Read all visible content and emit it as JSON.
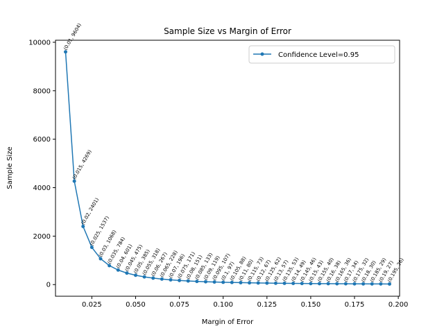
{
  "chart_data": {
    "type": "line",
    "title": "Sample Size vs Margin of Error",
    "xlabel": "Margin of Error",
    "ylabel": "Sample Size",
    "xlim": [
      0.00425,
      0.20075
    ],
    "ylim": [
      -480.2,
      10084.2
    ],
    "xticks": [
      0.025,
      0.05,
      0.075,
      0.1,
      0.125,
      0.15,
      0.175,
      0.2
    ],
    "xtick_labels": [
      "0.025",
      "0.050",
      "0.075",
      "0.100",
      "0.125",
      "0.150",
      "0.175",
      "0.200"
    ],
    "yticks": [
      0,
      2000,
      4000,
      6000,
      8000,
      10000
    ],
    "ytick_labels": [
      "0",
      "2000",
      "4000",
      "6000",
      "8000",
      "10000"
    ],
    "grid": false,
    "legend_position": "top-right",
    "series": [
      {
        "name": "Confidence Level=0.95",
        "color": "#1f77b4",
        "marker": "circle",
        "x": [
          0.01,
          0.015,
          0.02,
          0.025,
          0.03,
          0.035,
          0.04,
          0.045,
          0.05,
          0.055,
          0.06,
          0.065,
          0.07,
          0.075,
          0.08,
          0.085,
          0.09,
          0.095,
          0.1,
          0.105,
          0.11,
          0.115,
          0.12,
          0.125,
          0.13,
          0.135,
          0.14,
          0.145,
          0.15,
          0.155,
          0.16,
          0.165,
          0.17,
          0.175,
          0.18,
          0.185,
          0.19,
          0.195
        ],
        "y": [
          9604,
          4269,
          2401,
          1537,
          1068,
          784,
          601,
          475,
          385,
          318,
          267,
          228,
          196,
          171,
          151,
          133,
          119,
          107,
          97,
          88,
          80,
          73,
          67,
          62,
          57,
          53,
          49,
          46,
          43,
          40,
          38,
          36,
          34,
          32,
          30,
          29,
          27,
          26
        ]
      }
    ],
    "annotations": [
      "(0.01, 9604)",
      "(0.015, 4269)",
      "(0.02, 2401)",
      "(0.025, 1537)",
      "(0.03, 1068)",
      "(0.035, 784)",
      "(0.04, 601)",
      "(0.045, 475)",
      "(0.05, 385)",
      "(0.055, 318)",
      "(0.06, 267)",
      "(0.065, 228)",
      "(0.07, 196)",
      "(0.075, 171)",
      "(0.08, 151)",
      "(0.085, 133)",
      "(0.09, 119)",
      "(0.095, 107)",
      "(0.1, 97)",
      "(0.105, 88)",
      "(0.11, 80)",
      "(0.115, 73)",
      "(0.12, 67)",
      "(0.125, 62)",
      "(0.13, 57)",
      "(0.135, 53)",
      "(0.14, 49)",
      "(0.145, 46)",
      "(0.15, 43)",
      "(0.155, 40)",
      "(0.16, 38)",
      "(0.165, 36)",
      "(0.17, 34)",
      "(0.175, 32)",
      "(0.18, 30)",
      "(0.185, 29)",
      "(0.19, 27)",
      "(0.195, 26)"
    ]
  }
}
